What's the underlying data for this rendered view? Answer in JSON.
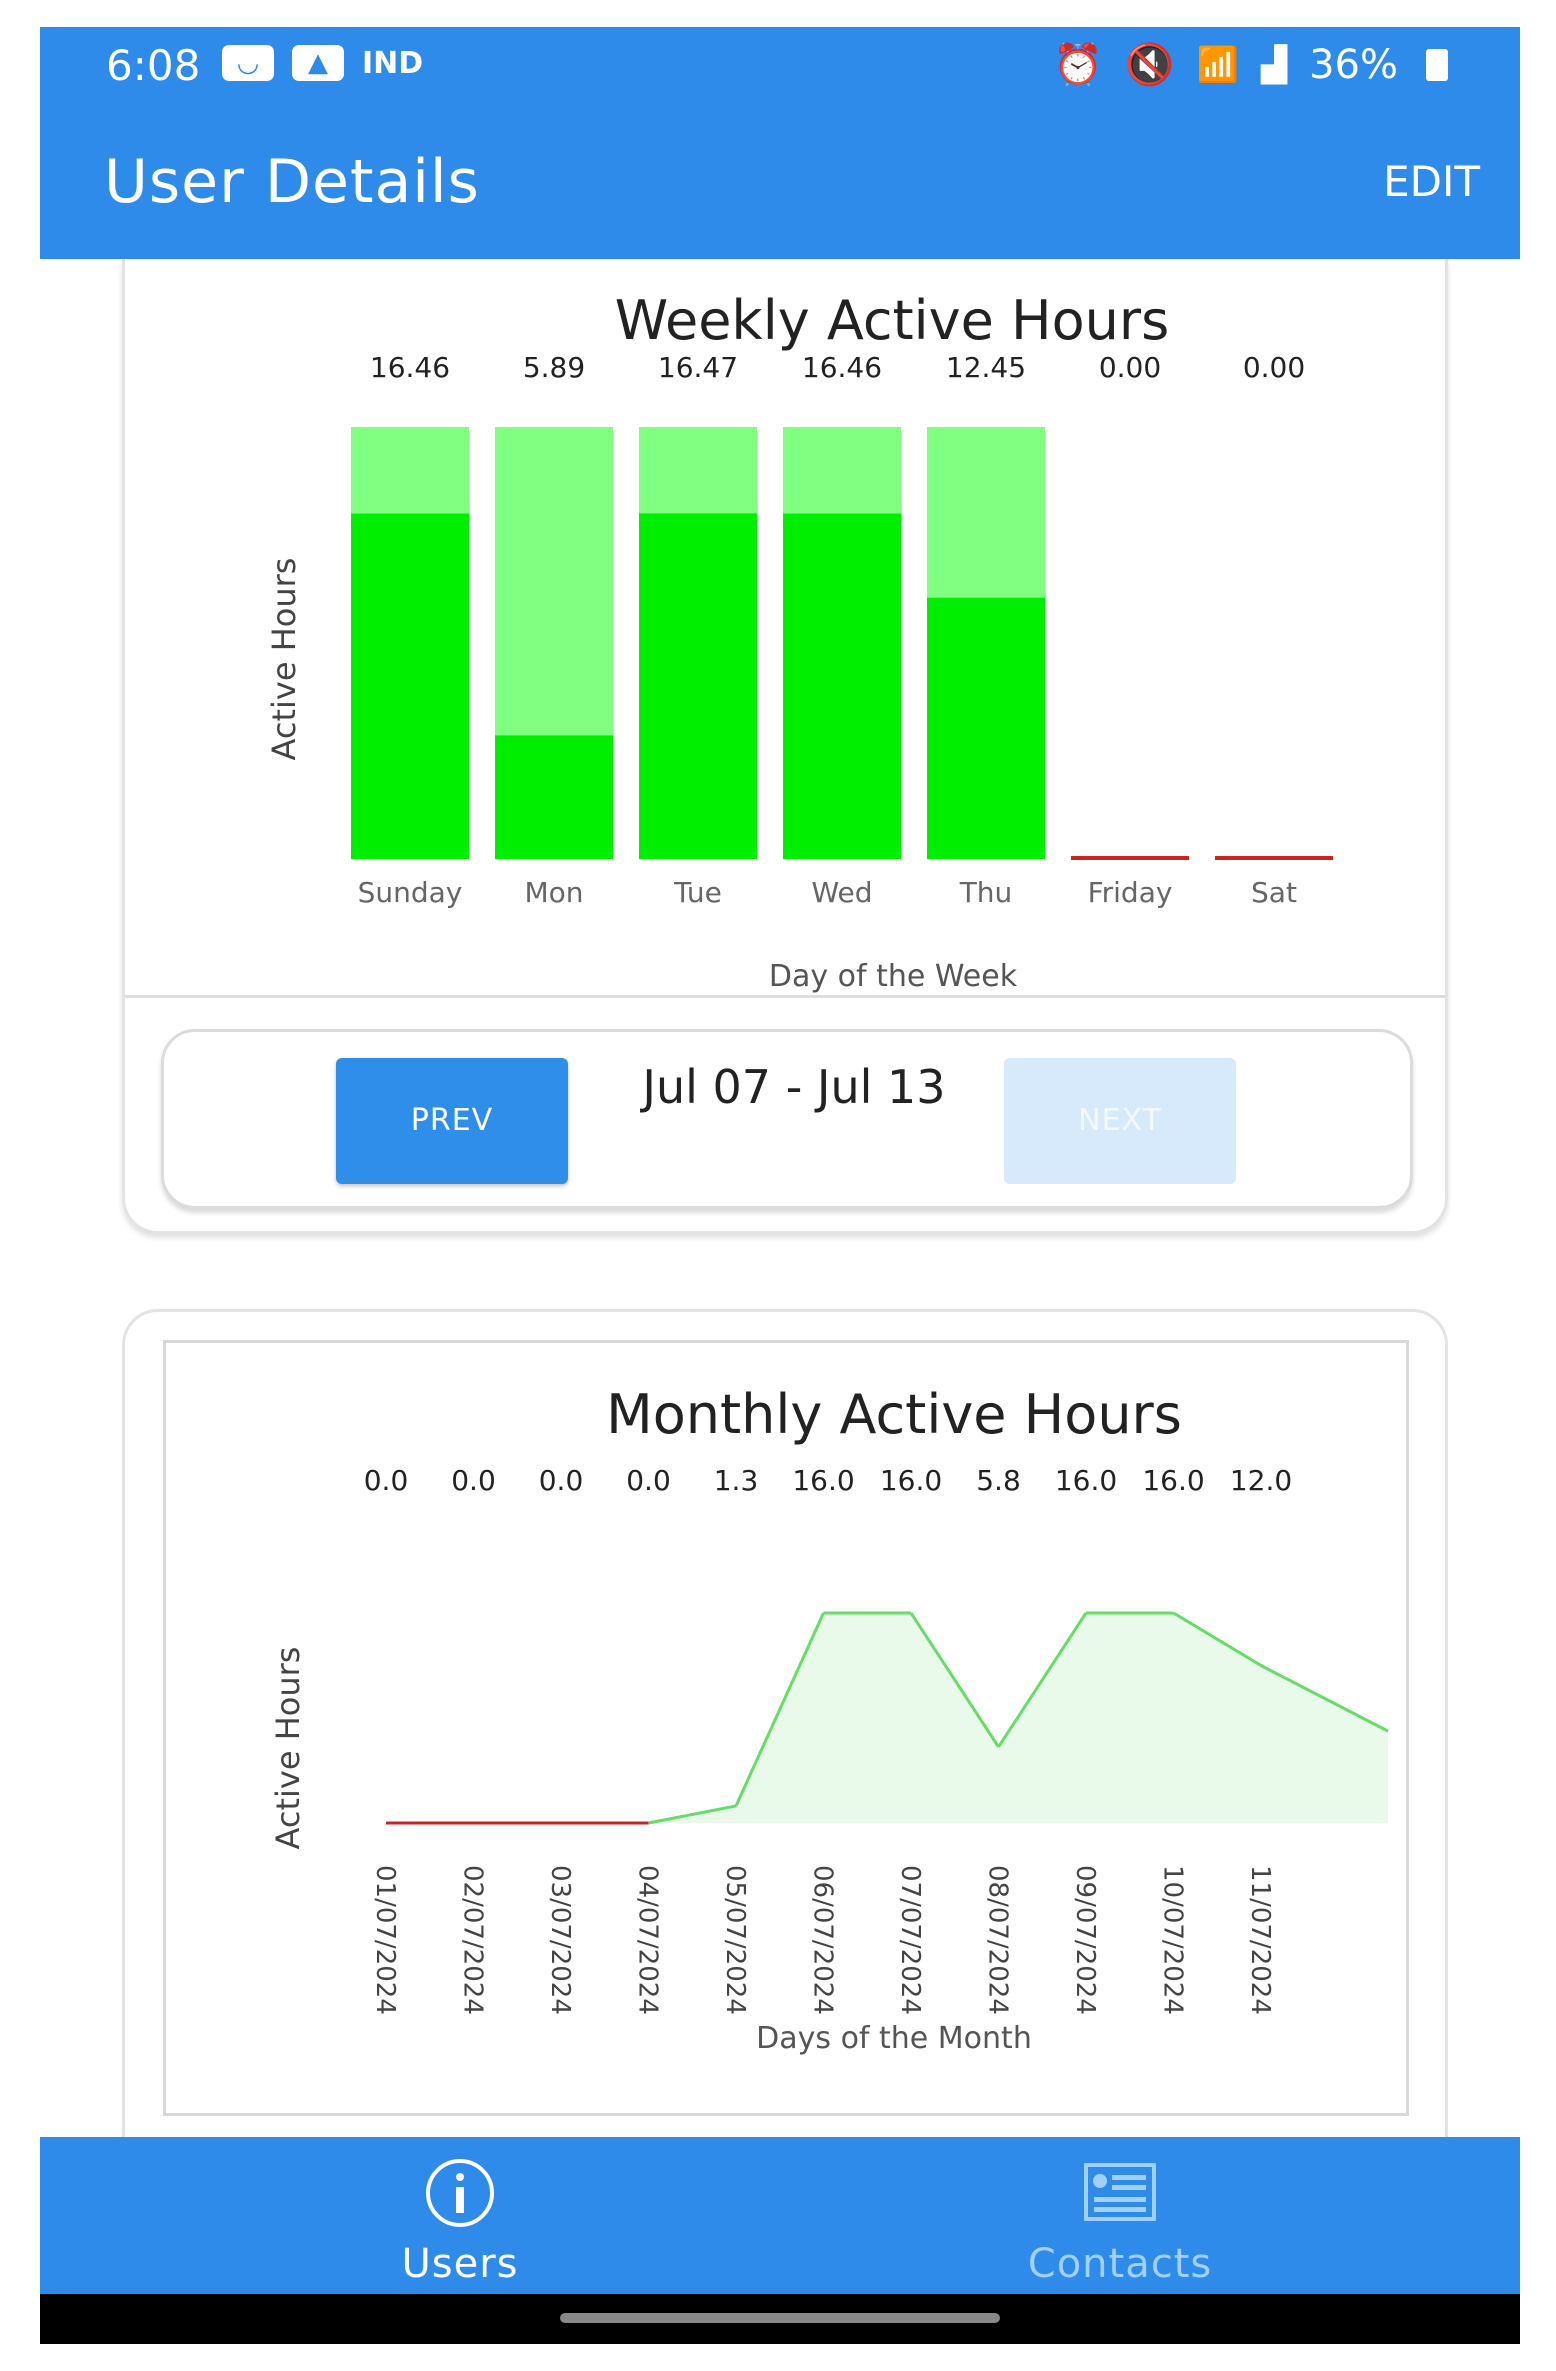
{
  "status_bar": {
    "time": "6:08",
    "left_icons": [
      "message-icon",
      "gallery-icon"
    ],
    "carrier_badge": "IND",
    "right_icons": [
      "alarm-icon",
      "mute-icon",
      "wifi-icon",
      "signal-icon"
    ],
    "battery": "36%"
  },
  "app_bar": {
    "title": "User Details",
    "edit_label": "EDIT"
  },
  "weekly": {
    "range_label": "Jul 07 - Jul 13",
    "prev_label": "PREV",
    "next_label": "NEXT",
    "chart_data": {
      "type": "bar",
      "title": "Weekly Active Hours",
      "xlabel": "Day of the Week",
      "ylabel": "Active Hours",
      "categories": [
        "Sunday",
        "Mon",
        "Tue",
        "Wed",
        "Thu",
        "Friday",
        "Sat"
      ],
      "value_labels": [
        "16.46",
        "5.89",
        "16.47",
        "16.46",
        "12.45",
        "0.00",
        "0.00"
      ],
      "values": [
        16.46,
        5.89,
        16.47,
        16.46,
        12.45,
        0.0,
        0.0
      ],
      "ylim": [
        0,
        16.47
      ],
      "colors": {
        "bar": "#00ee00",
        "bar_background": "#80ff80",
        "zero_line": "#cc2222"
      }
    }
  },
  "monthly": {
    "chart_data": {
      "type": "area",
      "title": "Monthly Active Hours",
      "xlabel": "Days of the Month",
      "ylabel": "Active Hours",
      "x": [
        "01/07/2024",
        "02/07/2024",
        "03/07/2024",
        "04/07/2024",
        "05/07/2024",
        "06/07/2024",
        "07/07/2024",
        "08/07/2024",
        "09/07/2024",
        "10/07/2024",
        "11/07/2024"
      ],
      "value_labels": [
        "0.0",
        "0.0",
        "0.0",
        "0.0",
        "1.3",
        "16.0",
        "16.0",
        "5.8",
        "16.0",
        "16.0",
        "12.0"
      ],
      "values": [
        0.0,
        0.0,
        0.0,
        0.0,
        1.3,
        16.0,
        16.0,
        5.8,
        16.0,
        16.0,
        12.0
      ],
      "trailing_value": 7.0,
      "ylim": [
        0,
        16.0
      ],
      "colors": {
        "line": "#66dd66",
        "fill": "#eafaea",
        "zero_line": "#cc2222"
      }
    }
  },
  "bottom_nav": {
    "items": [
      {
        "label": "Users",
        "icon": "info-icon",
        "active": true
      },
      {
        "label": "Contacts",
        "icon": "contacts-icon",
        "active": false
      }
    ]
  }
}
